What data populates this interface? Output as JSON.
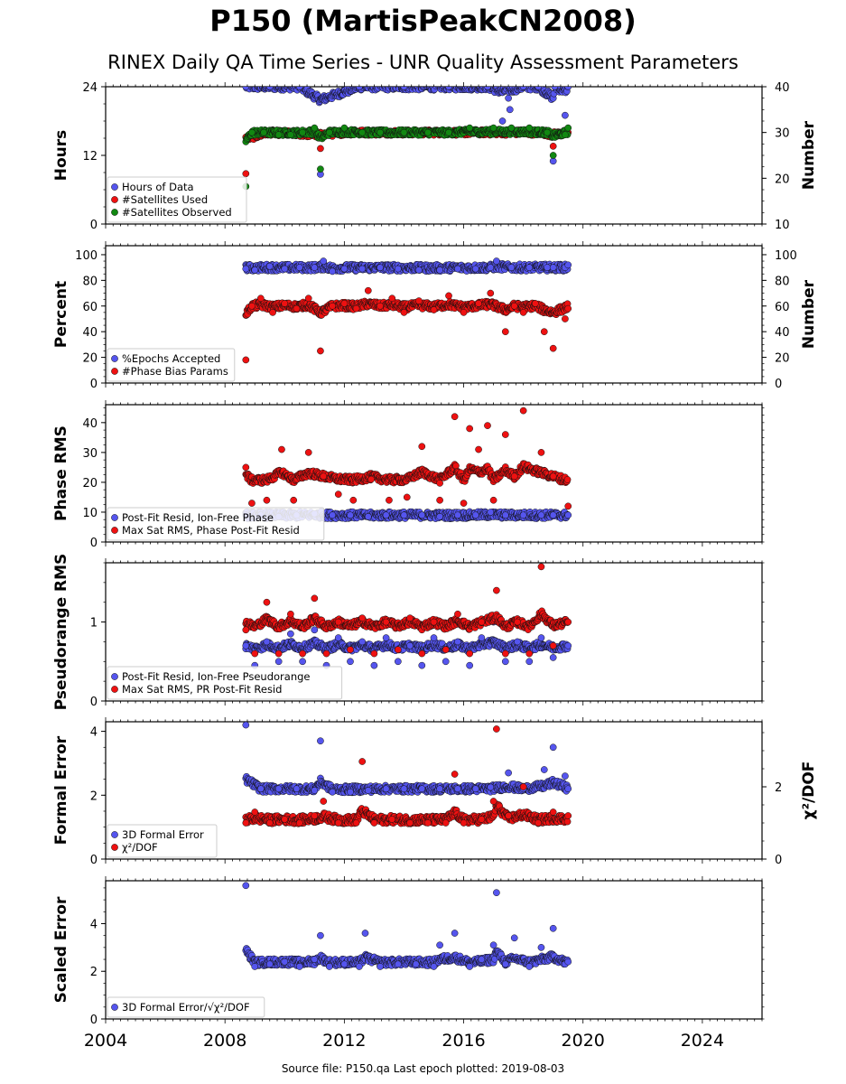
{
  "header": {
    "title": "P150 (MartisPeakCN2008)",
    "subtitle": "RINEX Daily QA Time Series - UNR Quality Assessment Parameters"
  },
  "footer": {
    "text": "Source file: P150.qa Last epoch plotted: 2019-08-03"
  },
  "colors": {
    "blue": "#5555ee",
    "red": "#ee1111",
    "green": "#118811",
    "edge": "#111111"
  },
  "chart_data": [
    {
      "type": "scatter",
      "ylabel": "Hours",
      "ylabel_right": "Number",
      "xlim": [
        2004,
        2026
      ],
      "ylim": [
        0,
        24
      ],
      "ylim_right": [
        10,
        40
      ],
      "yticks": [
        0,
        12,
        24
      ],
      "yticks_right": [
        10,
        20,
        30,
        40
      ],
      "legend": "lower-left",
      "series": [
        {
          "name": "Hours of Data",
          "color": "blue",
          "axis": "left",
          "x": [
            2008.7,
            2009.5,
            2010.5,
            2011.2,
            2012.5,
            2014.0,
            2015.5,
            2016.8,
            2017.3,
            2017.5,
            2017.55,
            2018.0,
            2018.5,
            2019.0,
            2019.05,
            2019.4,
            2019.5
          ],
          "y": [
            24,
            24,
            24,
            8.7,
            24,
            24,
            24,
            24,
            18,
            22,
            20,
            24,
            24,
            11,
            24,
            19,
            24
          ]
        },
        {
          "name": "#Satellites Used",
          "color": "red",
          "axis": "right",
          "x": [
            2008.7,
            2009.5,
            2011.2,
            2012.0,
            2014.0,
            2016.0,
            2017.5,
            2018.5,
            2019.0,
            2019.5
          ],
          "y": [
            21,
            30,
            26.5,
            30,
            30,
            30,
            30,
            30,
            27,
            30
          ]
        },
        {
          "name": "#Satellites Observed",
          "color": "green",
          "axis": "right",
          "x": [
            2008.7,
            2008.9,
            2009.3,
            2009.8,
            2010.2,
            2010.6,
            2011.0,
            2011.2,
            2011.5,
            2012.0,
            2012.6,
            2013.2,
            2014.0,
            2014.8,
            2015.5,
            2016.2,
            2017.0,
            2017.6,
            2018.2,
            2018.8,
            2019.0,
            2019.4,
            2019.5
          ],
          "y": [
            18.2,
            30,
            30,
            29.5,
            29.5,
            30,
            31,
            22,
            30,
            31,
            30,
            30,
            30,
            30,
            30,
            31,
            31,
            31,
            31,
            30,
            25,
            29.5,
            31
          ]
        }
      ]
    },
    {
      "type": "scatter",
      "ylabel": "Percent",
      "ylabel_right": "Number",
      "xlim": [
        2004,
        2026
      ],
      "ylim": [
        0,
        107
      ],
      "ylim_right": [
        0,
        107
      ],
      "yticks": [
        0,
        20,
        40,
        60,
        80,
        100
      ],
      "yticks_right": [
        0,
        20,
        40,
        60,
        80,
        100
      ],
      "legend": "lower-left",
      "series": [
        {
          "name": "%Epochs Accepted",
          "color": "blue",
          "axis": "left",
          "x": [
            2008.7,
            2009.0,
            2009.5,
            2010.0,
            2010.5,
            2011.0,
            2011.3,
            2011.6,
            2012.0,
            2012.6,
            2013.2,
            2013.8,
            2014.5,
            2015.2,
            2015.8,
            2016.4,
            2016.9,
            2017.1,
            2017.6,
            2018.2,
            2018.8,
            2019.0,
            2019.4,
            2019.5
          ],
          "y": [
            89,
            88,
            91,
            89,
            90,
            90,
            95,
            87,
            89,
            89,
            90,
            89,
            88,
            88,
            89,
            89,
            90,
            95,
            90,
            90,
            90,
            90,
            90,
            92
          ]
        },
        {
          "name": "#Phase Bias Params",
          "color": "red",
          "axis": "right",
          "x": [
            2008.7,
            2008.9,
            2009.2,
            2009.6,
            2010.0,
            2010.4,
            2010.8,
            2011.2,
            2011.6,
            2012.0,
            2012.4,
            2012.8,
            2013.2,
            2013.6,
            2014.0,
            2014.5,
            2015.0,
            2015.5,
            2016.0,
            2016.5,
            2016.9,
            2017.4,
            2017.7,
            2018.0,
            2018.4,
            2018.7,
            2019.0,
            2019.4,
            2019.5
          ],
          "y": [
            18,
            60,
            66,
            55,
            62,
            58,
            66,
            25,
            60,
            62,
            58,
            72,
            60,
            66,
            55,
            64,
            57,
            68,
            55,
            62,
            70,
            40,
            60,
            55,
            62,
            40,
            27,
            50,
            58
          ]
        }
      ]
    },
    {
      "type": "scatter",
      "ylabel": "Phase RMS",
      "xlim": [
        2004,
        2026
      ],
      "ylim": [
        0,
        46
      ],
      "yticks": [
        0,
        10,
        20,
        30,
        40
      ],
      "legend": "lower-left",
      "series": [
        {
          "name": "Post-Fit Resid, Ion-Free Phase",
          "color": "blue",
          "axis": "left",
          "x": [
            2008.7,
            2009.2,
            2009.8,
            2010.4,
            2011.0,
            2011.6,
            2012.2,
            2012.8,
            2013.4,
            2014.0,
            2014.6,
            2015.2,
            2015.8,
            2016.4,
            2016.9,
            2017.4,
            2018.0,
            2018.6,
            2019.0,
            2019.5
          ],
          "y": [
            9,
            9,
            8.5,
            9,
            9.5,
            9,
            9,
            8.5,
            9,
            9,
            9,
            8.5,
            9,
            9,
            10,
            9,
            9,
            9,
            9,
            9
          ]
        },
        {
          "name": "Max Sat RMS, Phase Post-Fit Resid",
          "color": "red",
          "axis": "left",
          "x": [
            2008.7,
            2008.9,
            2009.4,
            2009.9,
            2010.3,
            2010.8,
            2011.3,
            2011.8,
            2012.3,
            2012.9,
            2013.5,
            2014.1,
            2014.6,
            2015.2,
            2015.7,
            2016.0,
            2016.2,
            2016.5,
            2016.8,
            2017.0,
            2017.4,
            2017.7,
            2018.0,
            2018.6,
            2019.0,
            2019.5
          ],
          "y": [
            25,
            13,
            14,
            31,
            14,
            30,
            22,
            16,
            14,
            21,
            14,
            15,
            32,
            14,
            42,
            13,
            38,
            31,
            39,
            14,
            36,
            22,
            44,
            30,
            22,
            12
          ]
        }
      ]
    },
    {
      "type": "scatter",
      "ylabel": "Pseudorange RMS",
      "xlim": [
        2004,
        2026
      ],
      "ylim": [
        0,
        1.75
      ],
      "yticks": [
        0,
        1
      ],
      "legend": "lower-left",
      "series": [
        {
          "name": "Post-Fit Resid, Ion-Free Pseudorange",
          "color": "blue",
          "axis": "left",
          "x": [
            2008.7,
            2009.0,
            2009.4,
            2009.8,
            2010.2,
            2010.6,
            2011.0,
            2011.4,
            2011.8,
            2012.2,
            2012.6,
            2013.0,
            2013.4,
            2013.8,
            2014.2,
            2014.6,
            2015.0,
            2015.4,
            2015.8,
            2016.2,
            2016.6,
            2017.0,
            2017.4,
            2017.8,
            2018.2,
            2018.6,
            2019.0,
            2019.5
          ],
          "y": [
            0.7,
            0.45,
            0.75,
            0.5,
            0.85,
            0.5,
            0.9,
            0.45,
            0.8,
            0.5,
            0.75,
            0.45,
            0.8,
            0.5,
            0.7,
            0.45,
            0.8,
            0.5,
            0.75,
            0.45,
            0.8,
            1.0,
            0.5,
            0.75,
            0.5,
            0.8,
            0.55,
            0.7
          ]
        },
        {
          "name": "Max Sat RMS, PR Post-Fit Resid",
          "color": "red",
          "axis": "left",
          "x": [
            2008.7,
            2009.0,
            2009.4,
            2009.8,
            2010.2,
            2010.6,
            2011.0,
            2011.4,
            2011.8,
            2012.2,
            2012.6,
            2013.0,
            2013.4,
            2013.8,
            2014.2,
            2014.6,
            2015.0,
            2015.4,
            2015.8,
            2016.2,
            2016.6,
            2017.1,
            2017.4,
            2017.8,
            2018.2,
            2018.6,
            2019.0,
            2019.5
          ],
          "y": [
            0.9,
            0.6,
            1.25,
            0.6,
            1.1,
            0.6,
            1.3,
            0.6,
            1.0,
            0.65,
            1.05,
            0.6,
            1.0,
            0.65,
            1.05,
            0.6,
            1.0,
            0.65,
            1.1,
            0.6,
            1.0,
            1.4,
            0.6,
            1.0,
            0.6,
            1.7,
            0.7,
            1.0
          ]
        }
      ]
    },
    {
      "type": "scatter",
      "ylabel": "Formal Error",
      "ylabel_right": "χ²/DOF",
      "xlim": [
        2004,
        2026
      ],
      "ylim": [
        0,
        4.3
      ],
      "ylim_right": [
        0,
        3.8
      ],
      "yticks": [
        0,
        2,
        4
      ],
      "yticks_right": [
        0,
        2
      ],
      "legend": "lower-left",
      "series": [
        {
          "name": "3D Formal Error",
          "color": "blue",
          "axis": "left",
          "x": [
            2008.7,
            2009.2,
            2009.8,
            2010.4,
            2011.0,
            2011.2,
            2011.6,
            2012.2,
            2012.8,
            2013.4,
            2014.0,
            2014.6,
            2015.2,
            2015.8,
            2016.4,
            2016.9,
            2017.5,
            2018.0,
            2018.7,
            2019.0,
            2019.4,
            2019.5
          ],
          "y": [
            4.2,
            2.2,
            2.2,
            2.2,
            2.15,
            3.7,
            2.1,
            2.1,
            2.15,
            2.2,
            2.2,
            2.2,
            2.2,
            2.2,
            2.2,
            2.25,
            2.7,
            2.2,
            2.8,
            3.5,
            2.6,
            2.2
          ]
        },
        {
          "name": "χ²/DOF",
          "color": "red",
          "axis": "right",
          "x": [
            2008.7,
            2009.0,
            2009.5,
            2010.0,
            2010.5,
            2011.0,
            2011.3,
            2011.8,
            2012.4,
            2012.6,
            2013.0,
            2013.6,
            2014.2,
            2014.8,
            2015.4,
            2015.7,
            2016.0,
            2016.6,
            2017.0,
            2017.1,
            2017.5,
            2018.0,
            2018.5,
            2019.0,
            2019.5
          ],
          "y": [
            1.0,
            1.3,
            1.0,
            1.1,
            1.0,
            1.2,
            1.6,
            1.0,
            1.0,
            2.7,
            1.0,
            1.1,
            1.0,
            1.0,
            1.0,
            2.35,
            1.0,
            1.1,
            1.6,
            3.6,
            1.2,
            2.0,
            1.0,
            1.3,
            1.2
          ]
        }
      ]
    },
    {
      "type": "scatter",
      "ylabel": "Scaled Error",
      "xlim": [
        2004,
        2026
      ],
      "ylim": [
        0,
        5.8
      ],
      "yticks": [
        0,
        2,
        4
      ],
      "xticks": [
        2004,
        2008,
        2012,
        2016,
        2020,
        2024
      ],
      "legend": "lower-left",
      "series": [
        {
          "name": "3D Formal Error/√χ²/DOF",
          "color": "blue",
          "axis": "left",
          "x": [
            2008.7,
            2009.0,
            2009.5,
            2010.0,
            2010.5,
            2011.0,
            2011.2,
            2011.5,
            2012.0,
            2012.5,
            2012.7,
            2013.2,
            2013.8,
            2014.4,
            2015.0,
            2015.2,
            2015.7,
            2016.2,
            2016.6,
            2017.0,
            2017.1,
            2017.4,
            2017.7,
            2018.2,
            2018.6,
            2019.0,
            2019.4,
            2019.5
          ],
          "y": [
            5.6,
            2.2,
            2.3,
            2.4,
            2.2,
            2.5,
            3.5,
            2.2,
            2.3,
            2.2,
            3.6,
            2.2,
            2.3,
            2.3,
            2.2,
            3.1,
            3.6,
            2.2,
            2.5,
            3.1,
            5.3,
            2.3,
            3.4,
            2.2,
            3.0,
            3.8,
            2.3,
            2.4
          ]
        }
      ]
    }
  ]
}
